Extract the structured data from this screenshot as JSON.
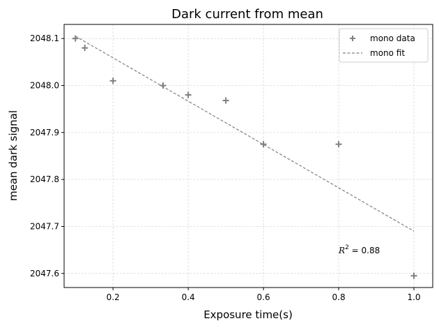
{
  "chart_data": {
    "type": "scatter",
    "title": "Dark current from mean",
    "xlabel": "Exposure time(s)",
    "ylabel": "mean dark signal",
    "xlim": [
      0.07,
      1.05
    ],
    "ylim": [
      2047.57,
      2048.13
    ],
    "xticks": [
      "0.2",
      "0.4",
      "0.6",
      "0.8",
      "1.0"
    ],
    "xtick_values": [
      0.2,
      0.4,
      0.6,
      0.8,
      1.0
    ],
    "yticks": [
      "2047.6",
      "2047.7",
      "2047.8",
      "2047.9",
      "2048.0",
      "2048.1"
    ],
    "ytick_values": [
      2047.6,
      2047.7,
      2047.8,
      2047.9,
      2048.0,
      2048.1
    ],
    "grid": true,
    "legend_position": "top-right",
    "series": [
      {
        "name": "mono data",
        "kind": "scatter",
        "marker": "plus",
        "color": "#7f7f7f",
        "x": [
          0.1,
          0.125,
          0.2,
          0.333,
          0.4,
          0.5,
          0.6,
          0.8,
          1.0
        ],
        "y": [
          2048.1,
          2048.08,
          2048.01,
          2048.0,
          2047.98,
          2047.968,
          2047.875,
          2047.875,
          2047.595
        ]
      },
      {
        "name": "mono fit",
        "kind": "line",
        "linestyle": "dashed",
        "color": "#7f7f7f",
        "x": [
          0.1,
          1.0
        ],
        "y": [
          2048.105,
          2047.69
        ]
      }
    ],
    "annotation": {
      "r_symbol": "R",
      "superscript": "2",
      "equals": " = 0.88",
      "x": 0.8,
      "y": 2047.65
    }
  }
}
